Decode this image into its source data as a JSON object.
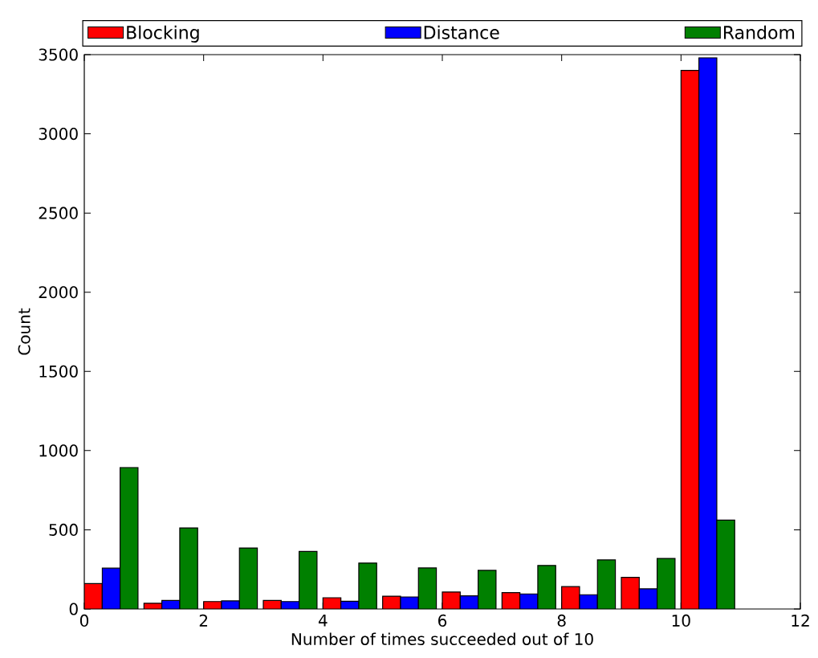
{
  "chart_data": {
    "type": "histogram",
    "xlabel": "Number of times succeeded out of 10",
    "ylabel": "Count",
    "bins": [
      0,
      1,
      2,
      3,
      4,
      5,
      6,
      7,
      8,
      9,
      10,
      11
    ],
    "series": [
      {
        "name": "Blocking",
        "color": "#ff0000",
        "values": [
          160,
          36,
          47,
          54,
          71,
          81,
          107,
          103,
          141,
          200,
          3400
        ]
      },
      {
        "name": "Distance",
        "color": "#0000ff",
        "values": [
          258,
          54,
          51,
          47,
          49,
          76,
          83,
          95,
          90,
          127,
          3480
        ]
      },
      {
        "name": "Random",
        "color": "#008000",
        "values": [
          893,
          512,
          385,
          363,
          290,
          259,
          244,
          275,
          310,
          319,
          561
        ]
      }
    ],
    "xlim": [
      0,
      12
    ],
    "ylim": [
      0,
      3500
    ],
    "xticks": [
      0,
      2,
      4,
      6,
      8,
      10,
      12
    ],
    "yticks": [
      0,
      500,
      1000,
      1500,
      2000,
      2500,
      3000,
      3500
    ],
    "legend": "top",
    "grid": false
  }
}
